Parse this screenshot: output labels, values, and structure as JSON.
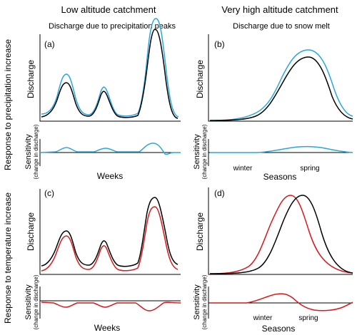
{
  "columns": [
    {
      "title": "Low altitude catchment",
      "subtitle": "Discharge due to precipitation peaks"
    },
    {
      "title": "Very high altitude catchment",
      "subtitle": "Discharge due to snow melt"
    }
  ],
  "rows": [
    {
      "label": "Response to precipitation increase"
    },
    {
      "label": "Response to temperature increase"
    }
  ],
  "labels": {
    "discharge": "Discharge",
    "sensitivity": "Sensitivity",
    "sensitivity_sub": "(change in discharge)",
    "weeks": "Weeks",
    "seasons": "Seasons",
    "winter": "winter",
    "spring": "spring"
  },
  "panels": {
    "a": {
      "tag": "(a)"
    },
    "b": {
      "tag": "(b)"
    },
    "c": {
      "tag": "(c)"
    },
    "d": {
      "tag": "(d)"
    }
  },
  "colors": {
    "baseline_curve": "#000000",
    "precipitation_curve": "#29a7df",
    "temperature_curve": "#d7191c"
  }
}
